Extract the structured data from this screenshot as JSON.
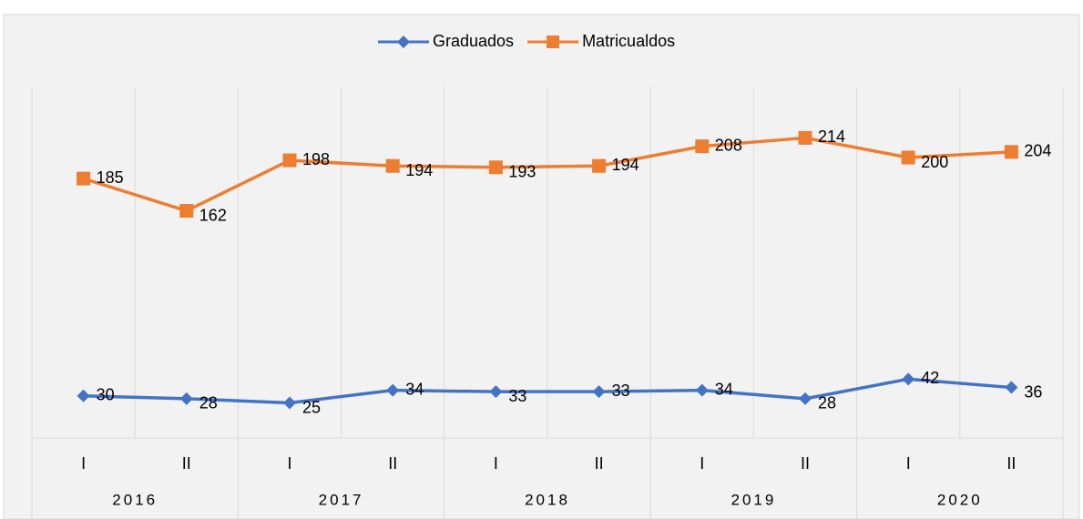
{
  "chart_data": {
    "type": "line",
    "categories": [
      "I",
      "II",
      "I",
      "II",
      "I",
      "II",
      "I",
      "II",
      "I",
      "II"
    ],
    "category_groups": [
      "2016",
      "2017",
      "2018",
      "2019",
      "2020"
    ],
    "series": [
      {
        "name": "Graduados",
        "color": "#4472c4",
        "marker": "diamond",
        "values": [
          30,
          28,
          25,
          34,
          33,
          33,
          34,
          28,
          42,
          36
        ]
      },
      {
        "name": "Matricualdos",
        "color": "#ed7d31",
        "marker": "square",
        "values": [
          185,
          162,
          198,
          194,
          193,
          194,
          208,
          214,
          200,
          204
        ]
      }
    ],
    "ylim": [
      0,
      250
    ],
    "legend": "top"
  }
}
